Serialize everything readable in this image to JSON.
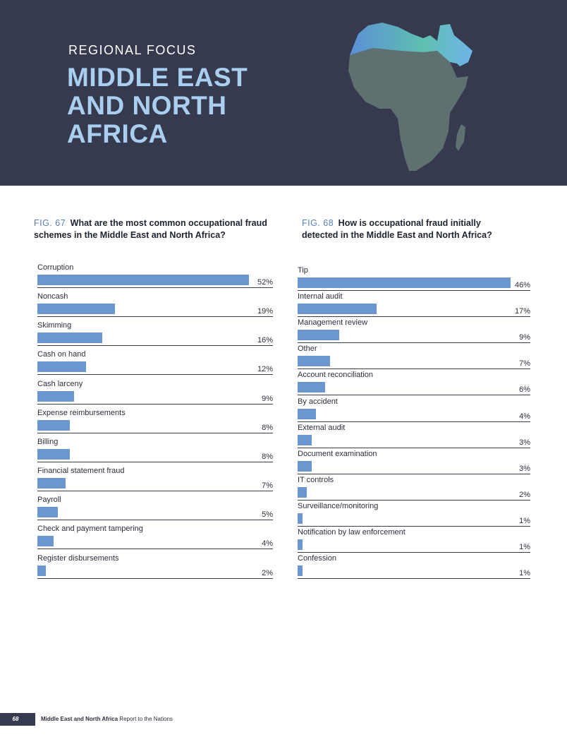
{
  "header": {
    "kicker": "REGIONAL FOCUS",
    "title_lines": [
      "MIDDLE EAST",
      "AND NORTH",
      "AFRICA"
    ]
  },
  "figures": [
    {
      "label": "FIG. 67",
      "question_lines": [
        "What are the most common occupational fraud",
        "schemes in the Middle East and North Africa?"
      ]
    },
    {
      "label": "FIG. 68",
      "question_lines": [
        "How is occupational fraud initially",
        "detected in the Middle East and North Africa?"
      ]
    }
  ],
  "chart_data": [
    {
      "type": "bar",
      "orientation": "horizontal",
      "title": "What are the most common occupational fraud schemes in the Middle East and North Africa?",
      "categories": [
        "Corruption",
        "Noncash",
        "Skimming",
        "Cash on hand",
        "Cash larceny",
        "Expense reimbursements",
        "Billing",
        "Financial statement fraud",
        "Payroll",
        "Check and payment tampering",
        "Register disbursements"
      ],
      "values": [
        52,
        19,
        16,
        12,
        9,
        8,
        8,
        7,
        5,
        4,
        2
      ],
      "value_labels": [
        "52%",
        "19%",
        "16%",
        "12%",
        "9%",
        "8%",
        "8%",
        "7%",
        "5%",
        "4%",
        "2%"
      ],
      "unit": "%",
      "xlim": [
        0,
        60
      ],
      "color": "#6b96d0"
    },
    {
      "type": "bar",
      "orientation": "horizontal",
      "title": "How is occupational fraud initially detected in the Middle East and North Africa?",
      "categories": [
        "Tip",
        "Internal audit",
        "Management review",
        "Other",
        "Account reconciliation",
        "By accident",
        "External audit",
        "Document examination",
        "IT controls",
        "Surveillance/monitoring",
        "Notification by law enforcement",
        "Confession"
      ],
      "values": [
        46,
        17,
        9,
        7,
        6,
        4,
        3,
        3,
        2,
        1,
        1,
        1
      ],
      "value_labels": [
        "46%",
        "17%",
        "9%",
        "7%",
        "6%",
        "4%",
        "3%",
        "3%",
        "2%",
        "1%",
        "1%",
        "1%"
      ],
      "unit": "%",
      "xlim": [
        0,
        50
      ],
      "color": "#6b96d0"
    }
  ],
  "footer": {
    "page_number": "68",
    "section": "Middle East and North Africa",
    "report": "Report to the Nations"
  },
  "colors": {
    "header_bg": "#363a4e",
    "title": "#a9cef0",
    "bar": "#6b96d0",
    "figure_label": "#5a7fb8"
  }
}
